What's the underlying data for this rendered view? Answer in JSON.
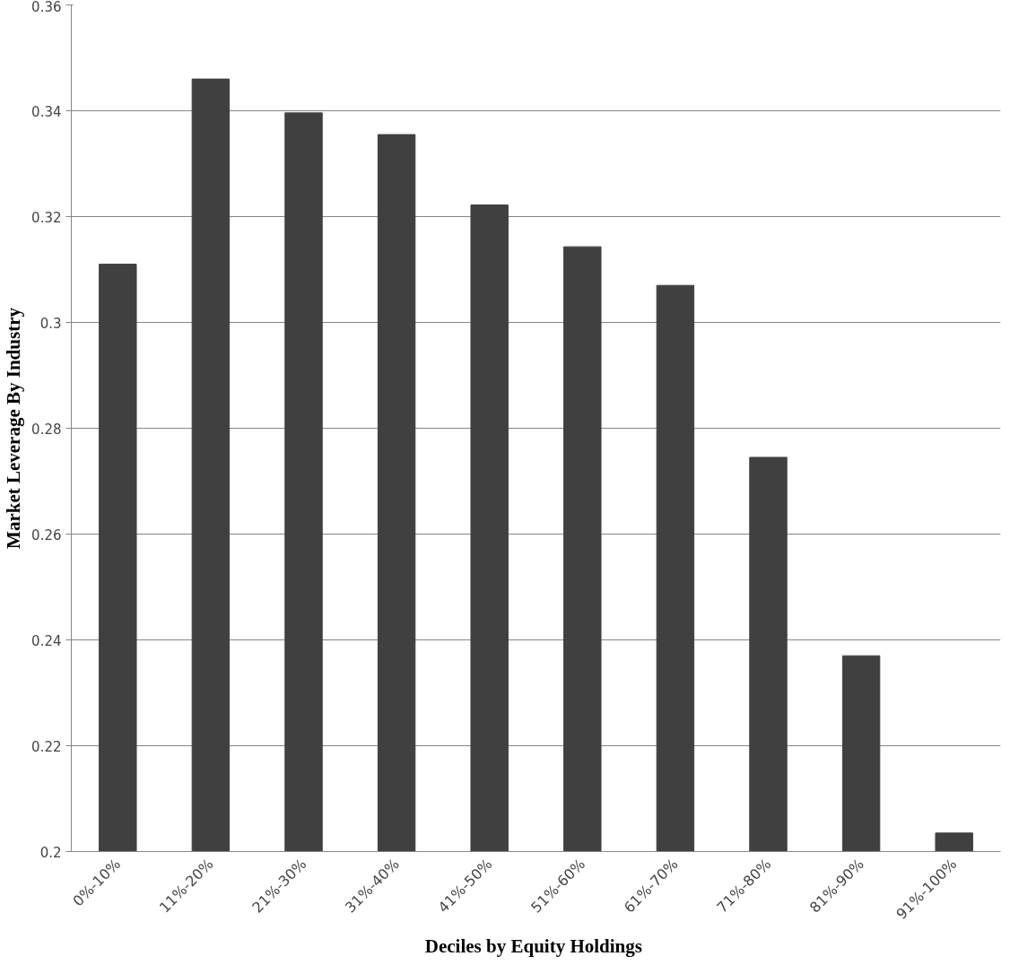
{
  "chart_data": {
    "type": "bar",
    "xlabel": "Deciles by Equity  Holdings",
    "ylabel": "Market Leverage By Industry",
    "categories": [
      "0%-10%",
      "11%-20%",
      "21%-30%",
      "31%-40%",
      "41%-50%",
      "51%-60%",
      "61%-70%",
      "71%-80%",
      "81%-90%",
      "91%-100%"
    ],
    "values": [
      0.311,
      0.346,
      0.3396,
      0.3355,
      0.3222,
      0.3143,
      0.307,
      0.2745,
      0.237,
      0.2035
    ],
    "color": "#404040",
    "ylim": [
      0.2,
      0.36
    ],
    "yticks": [
      0.2,
      0.22,
      0.24,
      0.26,
      0.28,
      {
        "value": 0.3,
        "label": "0.3"
      },
      0.32,
      0.34,
      0.36
    ],
    "grid": "y"
  }
}
